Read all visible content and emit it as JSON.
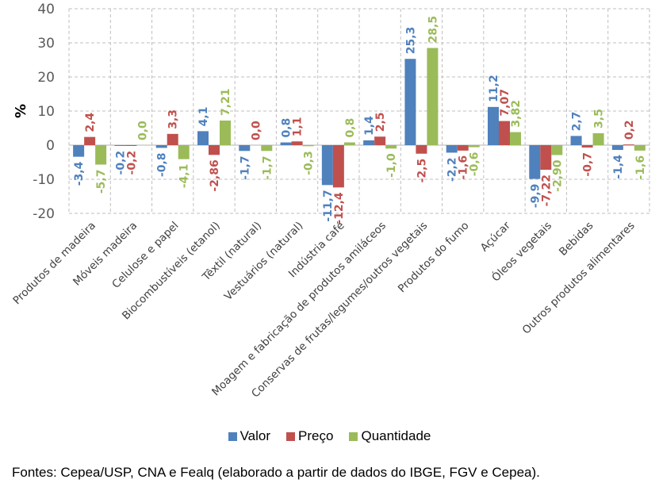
{
  "chart_data": {
    "type": "bar",
    "title": "",
    "xlabel": "",
    "ylabel": "%",
    "ylim": [
      -20,
      40
    ],
    "yticks": [
      -20,
      -10,
      0,
      10,
      20,
      30,
      40
    ],
    "grid": true,
    "legend_position": "bottom",
    "categories": [
      "Produtos de madeira",
      "Móveis madeira",
      "Celulose e papel",
      "Biocombustíveis (etanol)",
      "Têxtil (natural)",
      "Vestuários (natural)",
      "Indústria café",
      "Moagem e fabricação de produtos amiláceos",
      "Conservas de frutas/legumes/outros vegetais",
      "Produtos do fumo",
      "Açúcar",
      "Óleos vegetais",
      "Bebidas",
      "Outros produtos alimentares"
    ],
    "series": [
      {
        "name": "Valor",
        "color": "#4f81bd",
        "values": [
          -3.4,
          -0.2,
          -0.8,
          4.1,
          -1.7,
          0.8,
          -11.7,
          1.4,
          25.3,
          -2.2,
          11.2,
          -9.9,
          2.7,
          -1.4
        ],
        "labels": [
          "-3,4",
          "-0,2",
          "-0,8",
          "4,1",
          "-1,7",
          "0,8",
          "-11,7",
          "1,4",
          "25,3",
          "-2,2",
          "11,2",
          "-9,9",
          "2,7",
          "-1,4"
        ]
      },
      {
        "name": "Preço",
        "color": "#c0504d",
        "values": [
          2.4,
          -0.2,
          3.3,
          -2.86,
          0.0,
          1.1,
          -12.4,
          2.5,
          -2.5,
          -1.6,
          7.07,
          -7.22,
          -0.7,
          0.2
        ],
        "labels": [
          "2,4",
          "-0,2",
          "3,3",
          "-2,86",
          "0,0",
          "1,1",
          "-12,4",
          "2,5",
          "-2,5",
          "-1,6",
          "7,07",
          "-7,22",
          "-0,7",
          "0,2"
        ]
      },
      {
        "name": "Quantidade",
        "color": "#9bbb59",
        "values": [
          -5.7,
          0.0,
          -4.1,
          7.21,
          -1.7,
          -0.3,
          0.8,
          -1.0,
          28.5,
          -0.6,
          3.82,
          -2.9,
          3.5,
          -1.6
        ],
        "labels": [
          "-5,7",
          "0,0",
          "-4,1",
          "7,21",
          "-1,7",
          "-0,3",
          "0,8",
          "-1,0",
          "28,5",
          "-0,6",
          "3,82",
          "-2,90",
          "3,5",
          "-1,6"
        ]
      }
    ]
  },
  "source_note": "Fontes: Cepea/USP, CNA e Fealq (elaborado  a partir de dados do IBGE, FGV e Cepea)."
}
